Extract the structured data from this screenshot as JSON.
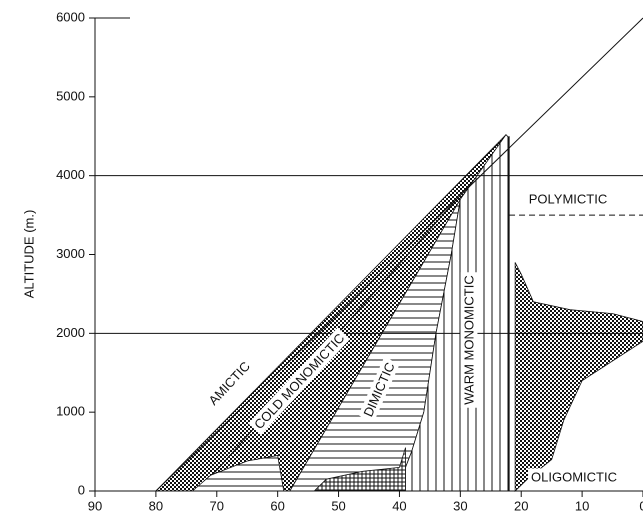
{
  "chart_data": {
    "type": "region",
    "y_label": "ALTITUDE (m.)",
    "xlim": [
      90,
      0
    ],
    "ylim": [
      0,
      6000
    ],
    "xticks": [
      90,
      80,
      70,
      60,
      50,
      40,
      30,
      20,
      10,
      0
    ],
    "yticks": [
      0,
      1000,
      2000,
      3000,
      4000,
      5000,
      6000
    ],
    "reference_lines": [
      2000,
      4000
    ],
    "diagonal": [
      [
        80,
        0
      ],
      [
        0,
        6000
      ]
    ],
    "dashed_line": {
      "y": 3500,
      "x": [
        22,
        0
      ]
    },
    "boundary": {
      "x": 22,
      "y": [
        0,
        4500
      ]
    },
    "regions": [
      {
        "name": "AMICTIC",
        "pattern": "dots",
        "points": [
          [
            80,
            0
          ],
          [
            22.5,
            4520
          ],
          [
            26,
            4100
          ],
          [
            73,
            0
          ]
        ]
      },
      {
        "name": "COLD MONOMICTIC",
        "pattern": "dots",
        "points": [
          [
            73,
            0
          ],
          [
            26,
            4100
          ],
          [
            30,
            3700
          ],
          [
            58,
            0
          ]
        ],
        "patch": {
          "pattern": "hlines",
          "points": [
            [
              74,
              0
            ],
            [
              71,
              200
            ],
            [
              65,
              380
            ],
            [
              60,
              450
            ],
            [
              59,
              0
            ]
          ]
        }
      },
      {
        "name": "DIMICTIC",
        "pattern": "hlines",
        "points": [
          [
            58,
            0
          ],
          [
            30,
            3700
          ],
          [
            31.5,
            3000
          ],
          [
            34,
            2000
          ],
          [
            36,
            1000
          ],
          [
            38,
            500
          ],
          [
            39,
            300
          ],
          [
            39,
            0
          ]
        ],
        "patch": {
          "pattern": "grid",
          "points": [
            [
              54,
              0
            ],
            [
              52,
              150
            ],
            [
              46,
              250
            ],
            [
              40,
              300
            ],
            [
              39,
              550
            ],
            [
              39,
              0
            ]
          ]
        }
      },
      {
        "name": "WARM MONOMICTIC",
        "pattern": "vlines",
        "points": [
          [
            39,
            0
          ],
          [
            39,
            300
          ],
          [
            38,
            500
          ],
          [
            36,
            1000
          ],
          [
            34,
            2000
          ],
          [
            31.5,
            3000
          ],
          [
            30,
            3700
          ],
          [
            22.5,
            4520
          ],
          [
            22,
            4480
          ],
          [
            22,
            0
          ]
        ]
      },
      {
        "name": "POLYMICTIC",
        "pattern": "none",
        "points": []
      },
      {
        "name": "OLIGOMICTIC",
        "pattern": "dots",
        "points": [
          [
            21,
            0
          ],
          [
            21,
            2900
          ],
          [
            20,
            2750
          ],
          [
            18,
            2400
          ],
          [
            12,
            2300
          ],
          [
            5,
            2250
          ],
          [
            0,
            2150
          ],
          [
            0,
            1900
          ],
          [
            6,
            1600
          ],
          [
            10,
            1400
          ],
          [
            13,
            900
          ],
          [
            15,
            400
          ],
          [
            19,
            150
          ]
        ]
      }
    ]
  }
}
